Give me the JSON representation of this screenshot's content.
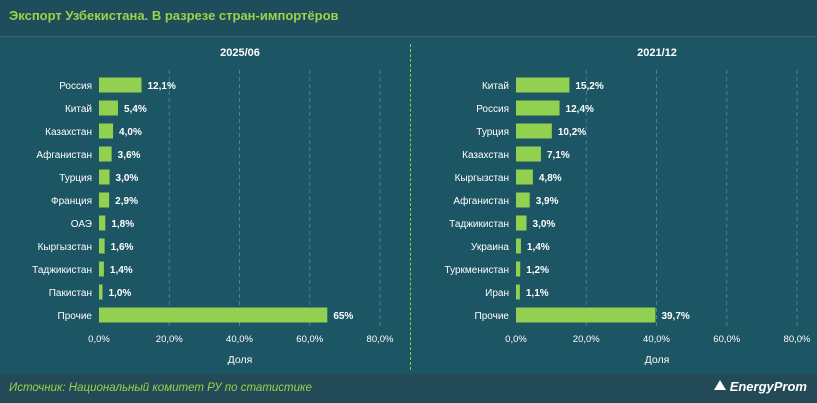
{
  "header": {
    "title": "Экспорт Узбекистана. В разрезе стран-импортёров"
  },
  "footer": {
    "source": "Источник: Национальный комитет РУ по статистике",
    "logo": "EnergyProm",
    "logo_icon": "energyprom-logo-icon"
  },
  "colors": {
    "background": "#1c5563",
    "bar": "#92d050",
    "grid": "#3a8899",
    "text": "#ffffff",
    "accent": "#9bd24a"
  },
  "chart_data": [
    {
      "type": "bar",
      "orientation": "horizontal",
      "title": "2025/06",
      "xlabel": "Доля",
      "xlim": [
        0,
        80
      ],
      "xticks": [
        "0,0%",
        "20,0%",
        "40,0%",
        "60,0%",
        "80,0%"
      ],
      "grid": true,
      "categories": [
        "Россия",
        "Китай",
        "Казахстан",
        "Афганистан",
        "Турция",
        "Франция",
        "ОАЭ",
        "Кыргызстан",
        "Таджикистан",
        "Пакистан",
        "Прочие"
      ],
      "values": [
        12.1,
        5.4,
        4.0,
        3.6,
        3.0,
        2.9,
        1.8,
        1.6,
        1.4,
        1.0,
        65
      ],
      "labels": [
        "12,1%",
        "5,4%",
        "4,0%",
        "3,6%",
        "3,0%",
        "2,9%",
        "1,8%",
        "1,6%",
        "1,4%",
        "1,0%",
        "65%"
      ]
    },
    {
      "type": "bar",
      "orientation": "horizontal",
      "title": "2021/12",
      "xlabel": "Доля",
      "xlim": [
        0,
        80
      ],
      "xticks": [
        "0,0%",
        "20,0%",
        "40,0%",
        "60,0%",
        "80,0%"
      ],
      "grid": true,
      "categories": [
        "Китай",
        "Россия",
        "Турция",
        "Казахстан",
        "Кыргызстан",
        "Афганистан",
        "Таджикистан",
        "Украина",
        "Туркменистан",
        "Иран",
        "Прочие"
      ],
      "values": [
        15.2,
        12.4,
        10.2,
        7.1,
        4.8,
        3.9,
        3.0,
        1.4,
        1.2,
        1.1,
        39.7
      ],
      "labels": [
        "15,2%",
        "12,4%",
        "10,2%",
        "7,1%",
        "4,8%",
        "3,9%",
        "3,0%",
        "1,4%",
        "1,2%",
        "1,1%",
        "39,7%"
      ]
    }
  ]
}
